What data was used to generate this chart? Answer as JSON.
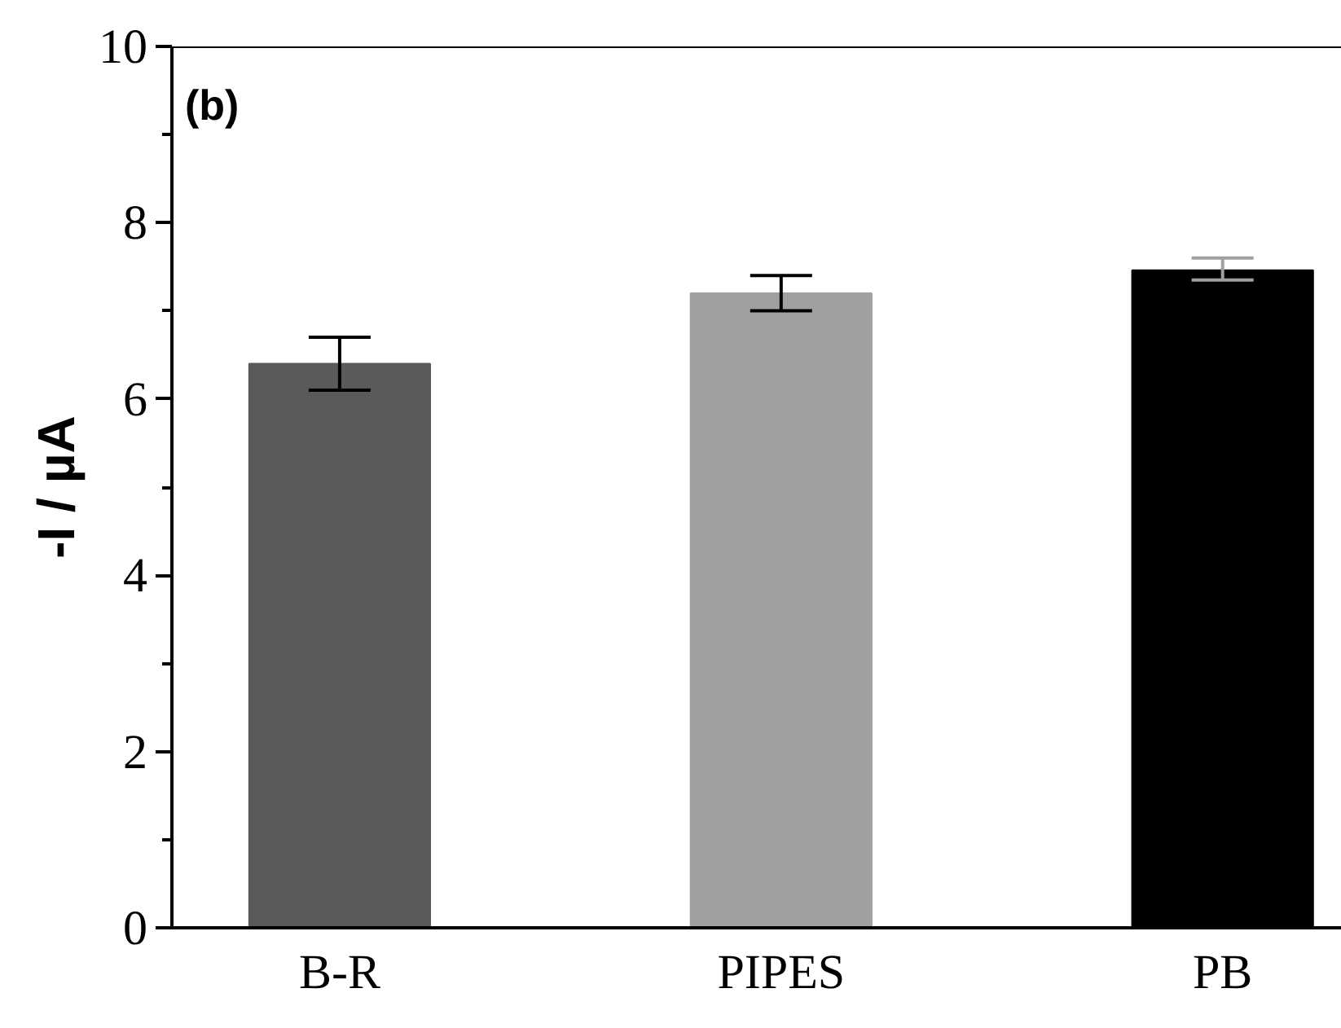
{
  "chart_data": {
    "type": "bar",
    "categories": [
      "B-R",
      "PIPES",
      "PB"
    ],
    "values": [
      6.4,
      7.2,
      7.46
    ],
    "colors": [
      "#5a5a5a",
      "#a0a0a2",
      "#000000"
    ],
    "errors": [
      [
        6.1,
        6.7
      ],
      [
        7.0,
        7.4
      ],
      [
        7.35,
        7.6
      ]
    ],
    "ylabel": "-I / µA",
    "annotations": [
      "(b)"
    ],
    "ylim": [
      0,
      10
    ],
    "yticks": [
      0,
      2,
      4,
      6,
      8,
      10
    ],
    "grid": false
  }
}
